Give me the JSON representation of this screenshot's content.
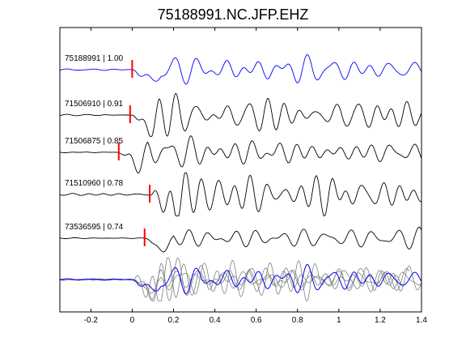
{
  "chart_data": {
    "type": "line",
    "title": "75188991.NC.JFP.EHZ",
    "xlabel": "",
    "ylabel": "",
    "xlim": [
      -0.35,
      1.4
    ],
    "x_ticks": [
      -0.2,
      0,
      0.2,
      0.4,
      0.6,
      0.8,
      1,
      1.2,
      1.4
    ],
    "x_tick_labels": [
      "-0.2",
      "0",
      "0.2",
      "0.4",
      "0.6",
      "0.8",
      "1",
      "1.2",
      "1.4"
    ],
    "y_ticks_shown": false,
    "grid": false,
    "legend": "none",
    "colors": {
      "reference_trace": "#0000ff",
      "similar_trace": "#000000",
      "pick_marker": "#ff0000",
      "stack_background_trace": "#808080"
    },
    "series": [
      {
        "label": "75188991 | 1.00",
        "event_id": "75188991",
        "correlation": 1.0,
        "pick_time": 0.0,
        "color": "#0000ff",
        "seed": 11
      },
      {
        "label": "71506910 | 0.91",
        "event_id": "71506910",
        "correlation": 0.91,
        "pick_time": -0.01,
        "color": "#000000",
        "seed": 23
      },
      {
        "label": "71506875 | 0.85",
        "event_id": "71506875",
        "correlation": 0.85,
        "pick_time": -0.065,
        "color": "#000000",
        "seed": 37
      },
      {
        "label": "71510960 | 0.78",
        "event_id": "71510960",
        "correlation": 0.78,
        "pick_time": 0.085,
        "color": "#000000",
        "seed": 41
      },
      {
        "label": "73536595 | 0.74",
        "event_id": "73536595",
        "correlation": 0.74,
        "pick_time": 0.06,
        "color": "#000000",
        "seed": 53
      }
    ],
    "overlay": {
      "description_shown": false,
      "includes_all_traces": true,
      "reference_color": "#0000ff",
      "other_color": "#808080"
    }
  }
}
